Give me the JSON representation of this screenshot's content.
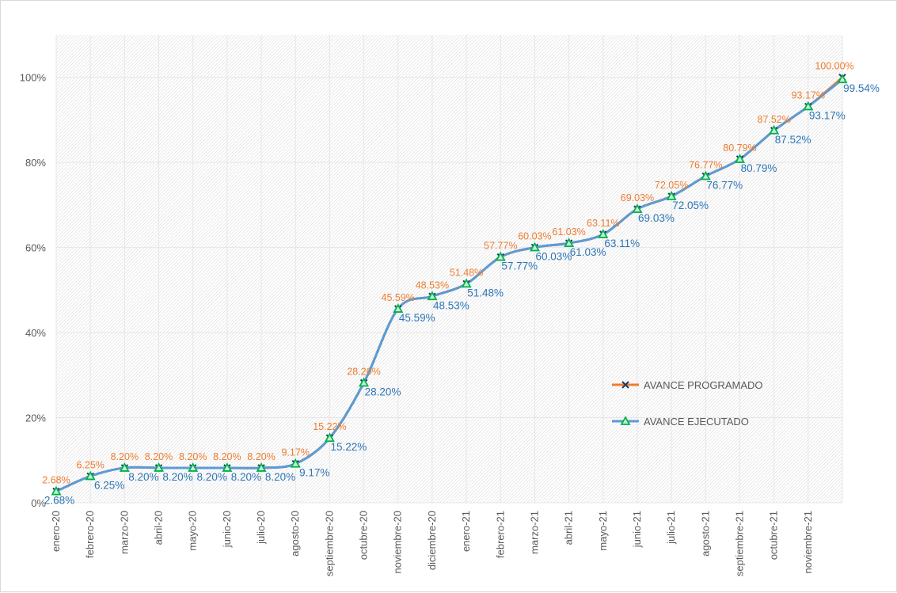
{
  "chart_data": {
    "type": "line",
    "title": "",
    "xlabel": "",
    "ylabel": "",
    "ylim": [
      0,
      1.1
    ],
    "y_ticks": [
      "0%",
      "20%",
      "40%",
      "60%",
      "80%",
      "100%"
    ],
    "y_tick_values": [
      0,
      0.2,
      0.4,
      0.6,
      0.8,
      1.0
    ],
    "grid": true,
    "legend_position": "right",
    "categories": [
      "enero-20",
      "febrero-20",
      "marzo-20",
      "abril-20",
      "mayo-20",
      "junio-20",
      "julio-20",
      "agosto-20",
      "septiembre-20",
      "octubre-20",
      "noviembre-20",
      "diciembre-20",
      "enero-21",
      "febrero-21",
      "marzo-21",
      "abril-21",
      "mayo-21",
      "junio-21",
      "julio-21",
      "agosto-21",
      "septiembre-21",
      "octubre-21",
      "noviembre-21",
      ""
    ],
    "series": [
      {
        "name": "AVANCE PROGRAMADO",
        "color": "#ed7d31",
        "marker": "x",
        "marker_color": "#1f3864",
        "values": [
          0.0268,
          0.0625,
          0.082,
          0.082,
          0.082,
          0.082,
          0.082,
          0.0917,
          0.1522,
          0.282,
          0.4559,
          0.4853,
          0.5148,
          0.5777,
          0.6003,
          0.6103,
          0.6311,
          0.6903,
          0.7205,
          0.7677,
          0.8079,
          0.8752,
          0.9317,
          1.0
        ],
        "labels": [
          "2.68%",
          "6.25%",
          "8.20%",
          "8.20%",
          "8.20%",
          "8.20%",
          "8.20%",
          "9.17%",
          "15.22%",
          "28.20%",
          "45.59%",
          "48.53%",
          "51.48%",
          "57.77%",
          "60.03%",
          "61.03%",
          "63.11%",
          "69.03%",
          "72.05%",
          "76.77%",
          "80.79%",
          "87.52%",
          "93.17%",
          "100.00%"
        ]
      },
      {
        "name": "AVANCE EJECUTADO",
        "color": "#5b9bd5",
        "marker": "triangle",
        "marker_color": "#00b050",
        "values": [
          0.0268,
          0.0625,
          0.082,
          0.082,
          0.082,
          0.082,
          0.082,
          0.0917,
          0.1522,
          0.282,
          0.4559,
          0.4853,
          0.5148,
          0.5777,
          0.6003,
          0.6103,
          0.6311,
          0.6903,
          0.7205,
          0.7677,
          0.8079,
          0.8752,
          0.9317,
          0.9954
        ],
        "labels": [
          "2.68%",
          "6.25%",
          "8.20%",
          "8.20%",
          "8.20%",
          "8.20%",
          "8.20%",
          "9.17%",
          "15.22%",
          "28.20%",
          "45.59%",
          "48.53%",
          "51.48%",
          "57.77%",
          "60.03%",
          "61.03%",
          "63.11%",
          "69.03%",
          "72.05%",
          "76.77%",
          "80.79%",
          "87.52%",
          "93.17%",
          "99.54%"
        ]
      }
    ]
  }
}
